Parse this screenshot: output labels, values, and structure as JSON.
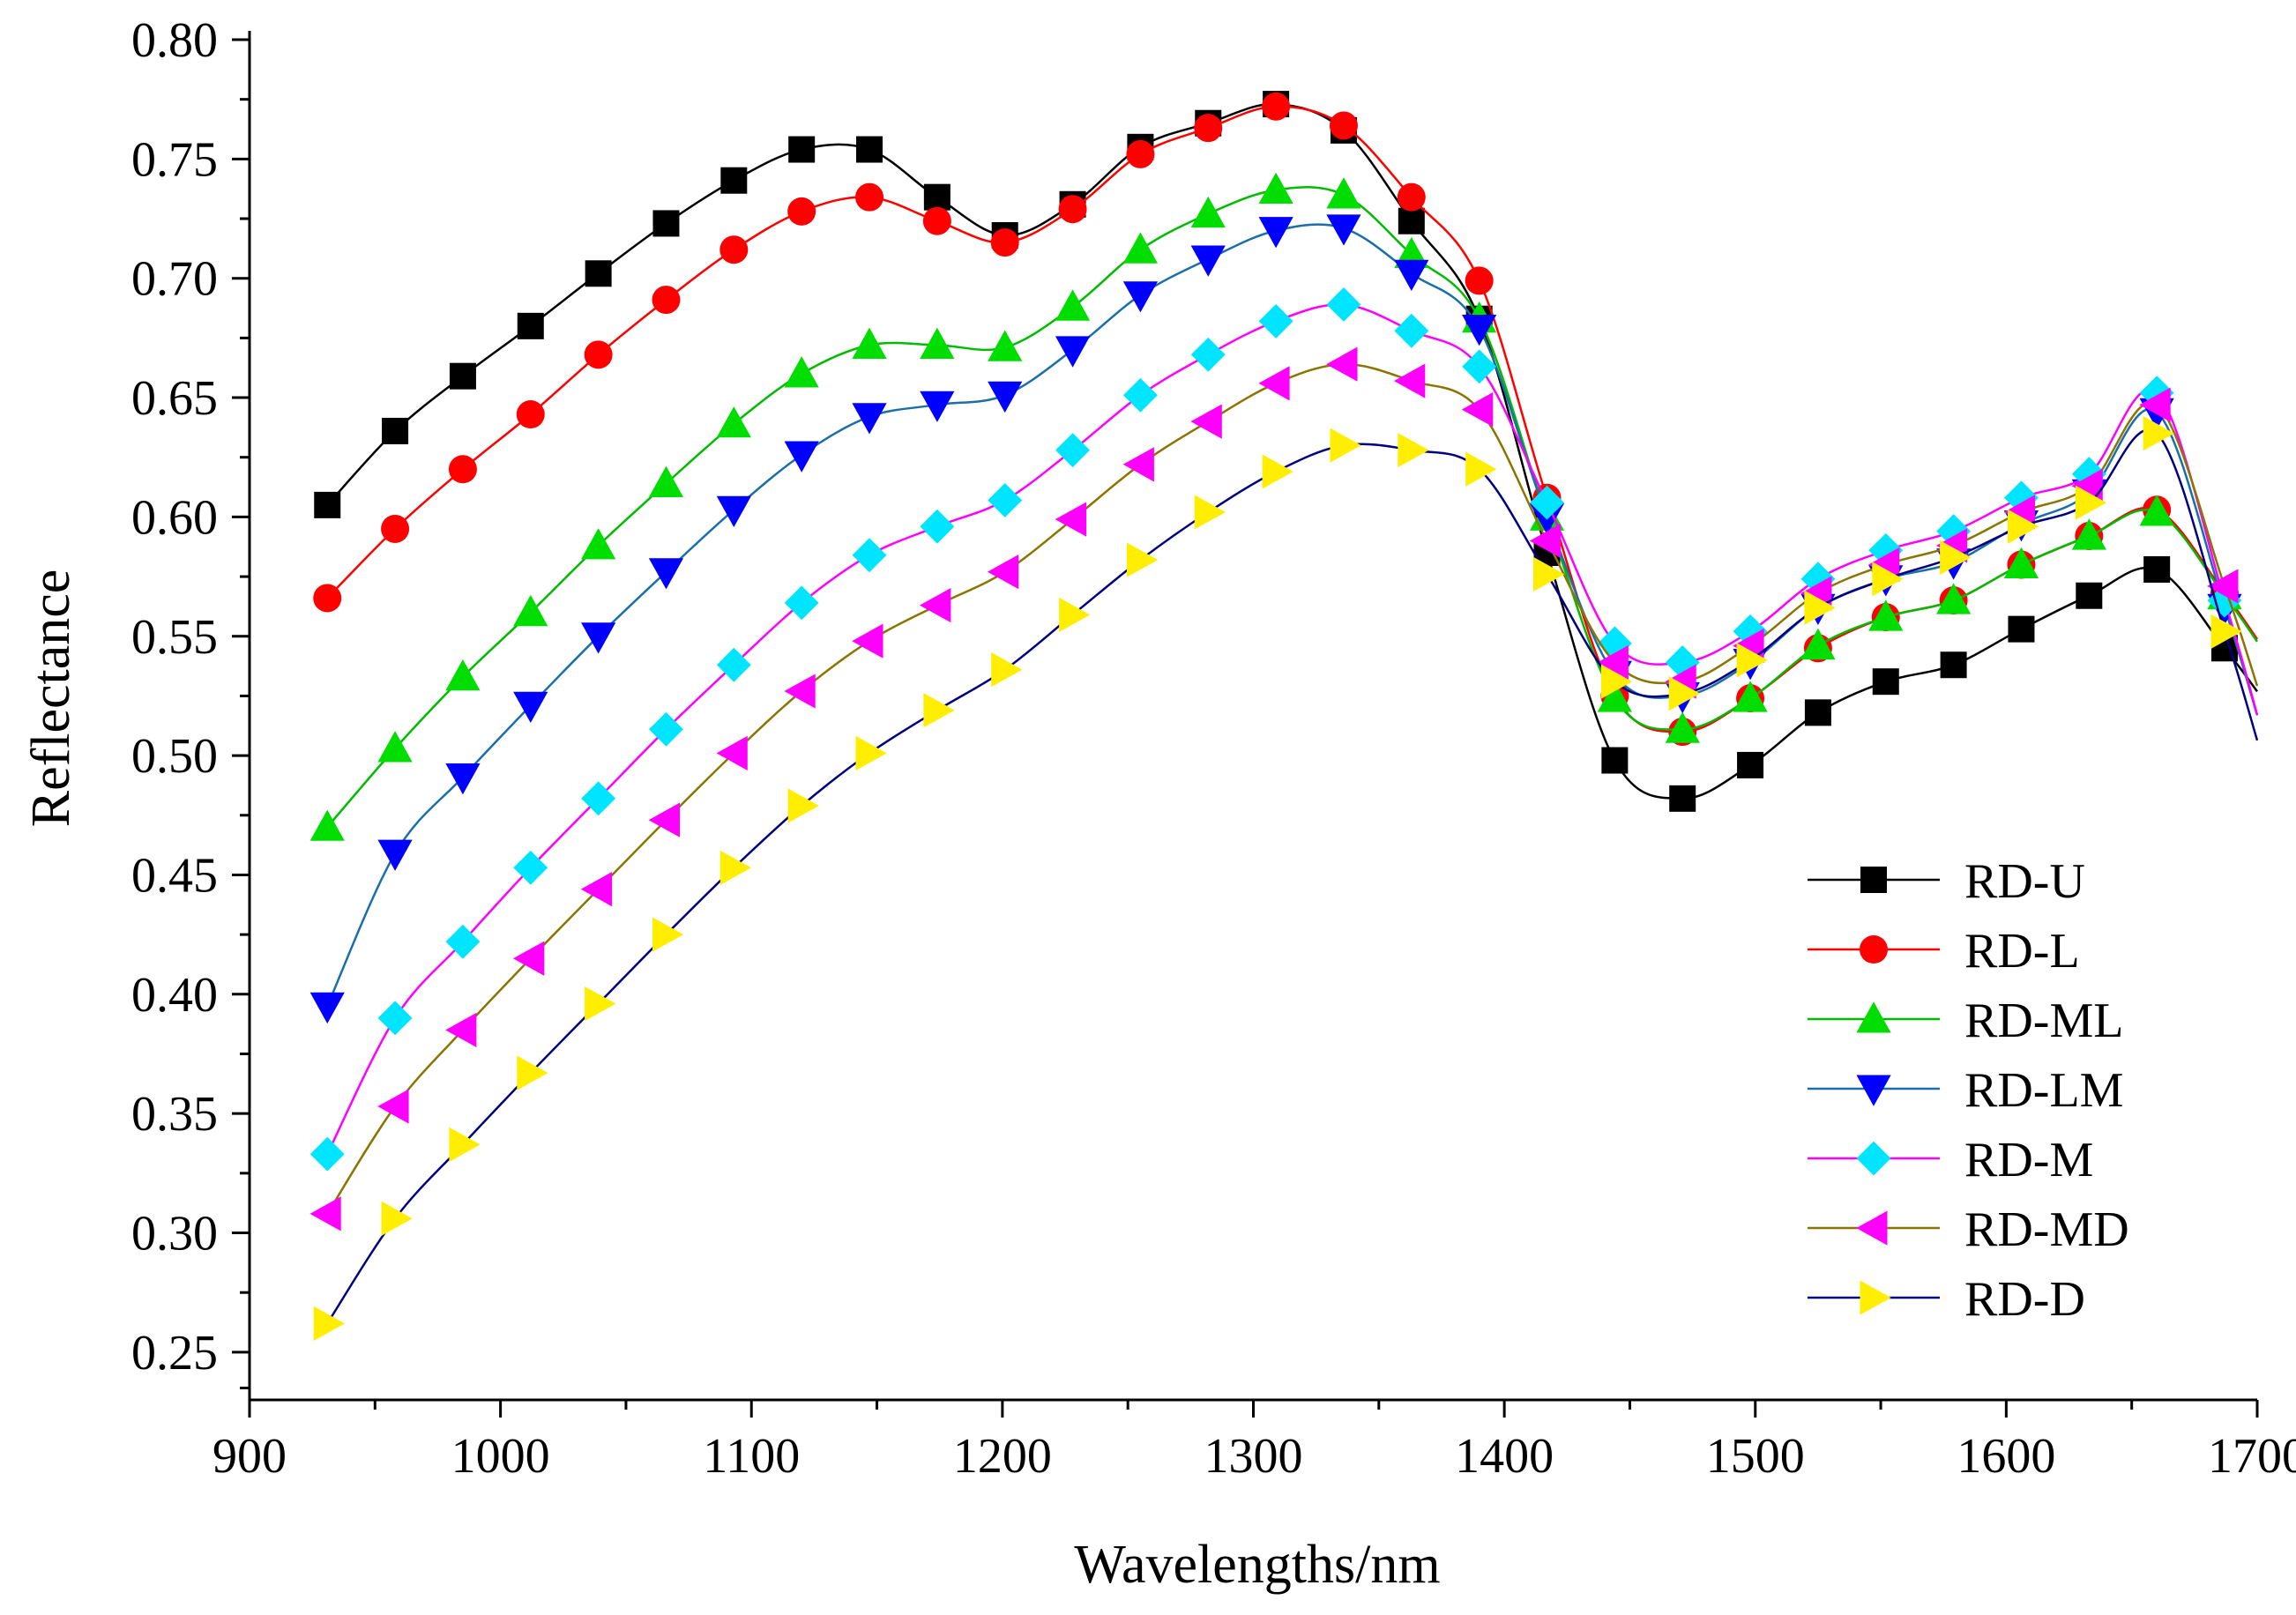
{
  "chart_data": {
    "type": "line",
    "title": "",
    "xlabel": "Wavelengths/nm",
    "ylabel": "Reflectance",
    "xlim": [
      900,
      1700
    ],
    "ylim": [
      0.23,
      0.8
    ],
    "x_ticks": [
      900,
      1000,
      1100,
      1200,
      1300,
      1400,
      1500,
      1600,
      1700
    ],
    "x_tick_labels": [
      "900",
      "1000",
      "1100",
      "1200",
      "1300",
      "1400",
      "1500",
      "1600",
      "1700"
    ],
    "y_ticks": [
      0.25,
      0.3,
      0.35,
      0.4,
      0.45,
      0.5,
      0.55,
      0.6,
      0.65,
      0.7,
      0.75,
      0.8
    ],
    "y_tick_labels": [
      "0.25",
      "0.30",
      "0.35",
      "0.40",
      "0.45",
      "0.50",
      "0.55",
      "0.60",
      "0.65",
      "0.70",
      "0.75",
      "0.80"
    ],
    "grid": false,
    "legend_position": "bottom-right",
    "x": [
      931,
      958,
      985,
      1012,
      1039,
      1066,
      1093,
      1120,
      1147,
      1174,
      1201,
      1228,
      1255,
      1282,
      1309,
      1336,
      1363,
      1390,
      1417,
      1444,
      1471,
      1498,
      1525,
      1552,
      1579,
      1606,
      1633,
      1660,
      1687
    ],
    "series": [
      {
        "name": "RD-U",
        "color": "#000000",
        "line_color": "#000000",
        "marker": "square",
        "values": [
          0.605,
          0.636,
          0.659,
          0.68,
          0.702,
          0.723,
          0.741,
          0.754,
          0.754,
          0.734,
          0.718,
          0.731,
          0.755,
          0.765,
          0.773,
          0.762,
          0.724,
          0.683,
          0.585,
          0.498,
          0.482,
          0.496,
          0.518,
          0.531,
          0.538,
          0.553,
          0.567,
          0.578,
          0.545
        ]
      },
      {
        "name": "RD-L",
        "color": "#ff0000",
        "line_color": "#ff0000",
        "marker": "circle",
        "values": [
          0.566,
          0.595,
          0.62,
          0.643,
          0.668,
          0.691,
          0.712,
          0.728,
          0.734,
          0.724,
          0.715,
          0.729,
          0.752,
          0.763,
          0.772,
          0.764,
          0.734,
          0.699,
          0.608,
          0.525,
          0.51,
          0.524,
          0.545,
          0.558,
          0.565,
          0.58,
          0.592,
          0.603,
          0.568
        ]
      },
      {
        "name": "RD-ML",
        "color": "#00dd00",
        "line_color": "#00bb00",
        "marker": "triangle-up",
        "values": [
          0.47,
          0.503,
          0.533,
          0.56,
          0.588,
          0.614,
          0.639,
          0.66,
          0.672,
          0.672,
          0.671,
          0.688,
          0.712,
          0.727,
          0.737,
          0.735,
          0.71,
          0.683,
          0.6,
          0.524,
          0.511,
          0.524,
          0.546,
          0.558,
          0.565,
          0.58,
          0.592,
          0.602,
          0.567
        ]
      },
      {
        "name": "RD-LM",
        "color": "#0000ff",
        "line_color": "#1a6fa8",
        "marker": "triangle-down",
        "values": [
          0.395,
          0.459,
          0.491,
          0.521,
          0.55,
          0.577,
          0.603,
          0.626,
          0.642,
          0.647,
          0.651,
          0.67,
          0.693,
          0.708,
          0.72,
          0.721,
          0.702,
          0.679,
          0.6,
          0.534,
          0.525,
          0.539,
          0.562,
          0.574,
          0.581,
          0.597,
          0.61,
          0.644,
          0.562
        ]
      },
      {
        "name": "RD-M",
        "color": "#00e5ff",
        "line_color": "#ff00ff",
        "marker": "diamond",
        "values": [
          0.333,
          0.39,
          0.422,
          0.453,
          0.482,
          0.511,
          0.538,
          0.564,
          0.584,
          0.596,
          0.607,
          0.628,
          0.651,
          0.668,
          0.682,
          0.689,
          0.678,
          0.663,
          0.606,
          0.547,
          0.539,
          0.552,
          0.574,
          0.586,
          0.594,
          0.608,
          0.618,
          0.652,
          0.565
        ]
      },
      {
        "name": "RD-MD",
        "color": "#ff00ff",
        "line_color": "#8b7500",
        "marker": "triangle-left",
        "values": [
          0.308,
          0.353,
          0.385,
          0.415,
          0.444,
          0.473,
          0.501,
          0.527,
          0.548,
          0.563,
          0.577,
          0.599,
          0.622,
          0.64,
          0.656,
          0.664,
          0.657,
          0.645,
          0.59,
          0.539,
          0.531,
          0.546,
          0.568,
          0.58,
          0.588,
          0.602,
          0.613,
          0.647,
          0.571
        ]
      },
      {
        "name": "RD-D",
        "color": "#ffee00",
        "line_color": "#000080",
        "marker": "triangle-right",
        "values": [
          0.262,
          0.306,
          0.337,
          0.367,
          0.396,
          0.425,
          0.453,
          0.479,
          0.501,
          0.519,
          0.536,
          0.559,
          0.582,
          0.602,
          0.619,
          0.63,
          0.628,
          0.62,
          0.576,
          0.531,
          0.526,
          0.54,
          0.562,
          0.574,
          0.583,
          0.596,
          0.606,
          0.635,
          0.552
        ]
      }
    ]
  }
}
